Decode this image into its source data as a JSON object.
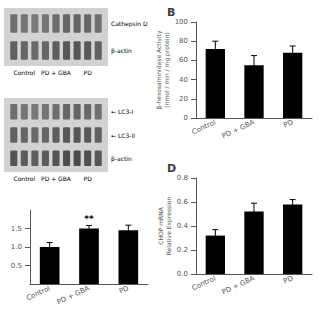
{
  "chart_data": [
    {
      "type": "blot",
      "categories": [
        "Control",
        "PD + GBA",
        "PD"
      ],
      "series": [
        {
          "name": "Cathepsin D"
        },
        {
          "name": "β-actin"
        }
      ]
    },
    {
      "type": "bar",
      "title": "B",
      "categories": [
        "Control",
        "PD + GBA",
        "PD"
      ],
      "values": [
        72,
        55,
        68
      ],
      "errors": [
        8,
        10,
        7
      ],
      "ylabel": "β-hexosaminidase Activity\n(nmol / min / mg protein)",
      "ylim": [
        0,
        100
      ],
      "yticks": [
        0,
        20,
        40,
        60,
        80,
        100
      ],
      "color": "#000000",
      "grid": false
    },
    {
      "type": "blot",
      "categories": [
        "Control",
        "PD + GBA",
        "PD"
      ],
      "series": [
        {
          "name": "← LC3-I"
        },
        {
          "name": "← LC3-II"
        },
        {
          "name": "β-actin"
        }
      ]
    },
    {
      "type": "bar",
      "title": "D",
      "categories": [
        "Control",
        "PD + GBA",
        "PD"
      ],
      "values": [
        0.32,
        0.52,
        0.58
      ],
      "errors": [
        0.05,
        0.07,
        0.04
      ],
      "ylabel": "CHOP mRNA\nRelative Expression",
      "ylim": [
        0.0,
        0.8
      ],
      "yticks": [
        {
          "value": 0,
          "label": "0.0"
        },
        0.2,
        0.4,
        0.6,
        0.8
      ],
      "color": "#000000",
      "grid": false
    },
    {
      "type": "bar",
      "categories": [
        "Control",
        "PD + GBA",
        "PD"
      ],
      "values": [
        1.0,
        1.5,
        1.45
      ],
      "errors": [
        0.12,
        0.08,
        0.14
      ],
      "annotations": [
        {
          "category": "PD + GBA",
          "text": "**"
        }
      ],
      "ylim": [
        0.0,
        2.0
      ],
      "yticks": [
        0.5,
        {
          "value": 1,
          "label": "1.0"
        },
        1.5
      ],
      "color": "#000000",
      "grid": false
    }
  ]
}
